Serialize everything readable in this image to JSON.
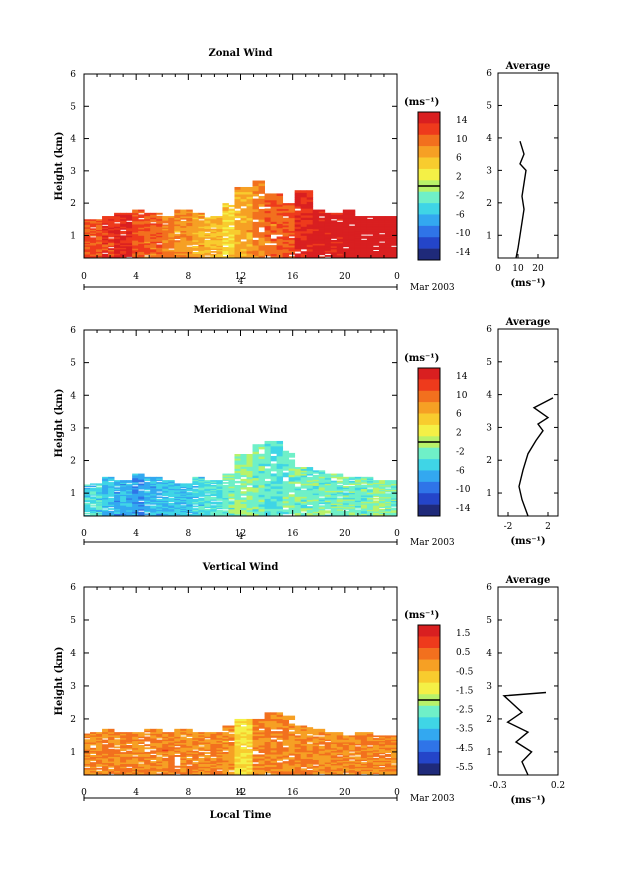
{
  "chart_data": [
    {
      "type": "heatmap",
      "title": "Zonal Wind",
      "ylabel": "Height (km)",
      "xlabel": "",
      "ylim": [
        0.3,
        6
      ],
      "yticks": [
        "1",
        "2",
        "3",
        "4",
        "5",
        "6"
      ],
      "xlim": [
        0,
        24
      ],
      "xticks": [
        "0",
        "4",
        "8",
        "12",
        "16",
        "20",
        "0"
      ],
      "date_label": "4",
      "month_label": "Mar 2003",
      "colorbar": {
        "unit": "(ms⁻¹)",
        "ticks": [
          "14",
          "10",
          "6",
          "2",
          "-2",
          "-6",
          "-10",
          "-14"
        ],
        "range": [
          -14,
          14
        ]
      },
      "average": {
        "title": "Average",
        "xlim": [
          0,
          30
        ],
        "xticks": [
          "0",
          "10",
          "20"
        ],
        "xlabel": "(ms⁻¹)",
        "profile": [
          [
            9,
            0.3
          ],
          [
            10,
            0.6
          ],
          [
            11,
            1.0
          ],
          [
            12,
            1.4
          ],
          [
            13,
            1.8
          ],
          [
            12,
            2.2
          ],
          [
            13,
            2.6
          ],
          [
            14,
            3.0
          ],
          [
            11,
            3.2
          ],
          [
            13,
            3.5
          ],
          [
            11,
            3.9
          ]
        ]
      },
      "field_ceiling": [
        1.5,
        1.6,
        1.7,
        1.8,
        1.7,
        1.6,
        1.8,
        1.7,
        1.6,
        2.0,
        2.5,
        2.7,
        2.3,
        2.0,
        2.4,
        1.8,
        1.7,
        1.8,
        1.6,
        1.6,
        1.6
      ],
      "field_values": [
        10,
        11,
        12,
        10,
        9,
        8,
        7,
        6,
        5,
        4,
        6,
        8,
        9,
        10,
        12,
        13,
        13,
        14,
        14,
        14,
        14
      ]
    },
    {
      "type": "heatmap",
      "title": "Meridional Wind",
      "ylabel": "Height (km)",
      "xlabel": "",
      "ylim": [
        0.3,
        6
      ],
      "yticks": [
        "1",
        "2",
        "3",
        "4",
        "5",
        "6"
      ],
      "xlim": [
        0,
        24
      ],
      "xticks": [
        "0",
        "4",
        "8",
        "12",
        "16",
        "20",
        "0"
      ],
      "date_label": "4",
      "month_label": "Mar 2003",
      "colorbar": {
        "unit": "(ms⁻¹)",
        "ticks": [
          "14",
          "10",
          "6",
          "2",
          "-2",
          "-6",
          "-10",
          "-14"
        ],
        "range": [
          -14,
          14
        ]
      },
      "average": {
        "title": "Average",
        "xlim": [
          -3,
          3
        ],
        "xticks": [
          "-2",
          "2"
        ],
        "xlabel": "(ms⁻¹)",
        "profile": [
          [
            0.0,
            0.3
          ],
          [
            -0.6,
            0.8
          ],
          [
            -0.9,
            1.2
          ],
          [
            -0.5,
            1.7
          ],
          [
            0.0,
            2.2
          ],
          [
            0.8,
            2.6
          ],
          [
            1.5,
            2.9
          ],
          [
            1.0,
            3.1
          ],
          [
            2.0,
            3.3
          ],
          [
            0.6,
            3.6
          ],
          [
            2.5,
            3.9
          ]
        ]
      },
      "field_ceiling": [
        1.3,
        1.5,
        1.4,
        1.6,
        1.5,
        1.4,
        1.3,
        1.5,
        1.4,
        1.6,
        2.2,
        2.5,
        2.6,
        2.3,
        1.8,
        1.7,
        1.6,
        1.5,
        1.5,
        1.4,
        1.4
      ],
      "field_values": [
        -4,
        -5,
        -6,
        -7,
        -6,
        -5,
        -5,
        -4,
        -3,
        -2,
        -1,
        -2,
        -3,
        -2,
        -2,
        -2,
        -2,
        -2,
        -2,
        -1,
        -2
      ]
    },
    {
      "type": "heatmap",
      "title": "Vertical Wind",
      "ylabel": "Height (km)",
      "xlabel": "Local Time",
      "ylim": [
        0.3,
        6
      ],
      "yticks": [
        "1",
        "2",
        "3",
        "4",
        "5",
        "6"
      ],
      "xlim": [
        0,
        24
      ],
      "xticks": [
        "0",
        "4",
        "8",
        "12",
        "16",
        "20",
        "0"
      ],
      "date_label": "4",
      "month_label": "Mar 2003",
      "colorbar": {
        "unit": "(ms⁻¹)",
        "ticks": [
          "1.5",
          "0.5",
          "-0.5",
          "-1.5",
          "-2.5",
          "-3.5",
          "-4.5",
          "-5.5"
        ],
        "range": [
          -6.0,
          2.0
        ]
      },
      "average": {
        "title": "Average",
        "xlim": [
          -0.3,
          0.2
        ],
        "xticks": [
          "-0.3",
          "0.2"
        ],
        "xlabel": "(ms⁻¹)",
        "profile": [
          [
            -0.05,
            0.3
          ],
          [
            -0.1,
            0.7
          ],
          [
            -0.02,
            1.0
          ],
          [
            -0.15,
            1.3
          ],
          [
            -0.05,
            1.6
          ],
          [
            -0.22,
            1.9
          ],
          [
            -0.1,
            2.2
          ],
          [
            -0.25,
            2.7
          ],
          [
            0.1,
            2.8
          ]
        ]
      },
      "field_ceiling": [
        1.6,
        1.7,
        1.6,
        1.6,
        1.7,
        1.6,
        1.7,
        1.6,
        1.6,
        1.8,
        2.0,
        2.0,
        2.2,
        2.1,
        1.8,
        1.7,
        1.6,
        1.5,
        1.6,
        1.5,
        1.5
      ],
      "field_values": [
        0.2,
        0.3,
        0.2,
        0.1,
        0.2,
        0.3,
        0.2,
        0.1,
        0.2,
        0.0,
        -1.0,
        0.1,
        0.2,
        0.1,
        0.2,
        0.2,
        0.2,
        0.1,
        0.2,
        0.2,
        0.2
      ]
    }
  ],
  "colors": [
    "#1f2a7a",
    "#2445c9",
    "#2f74e8",
    "#33a8f0",
    "#3fd5e6",
    "#6ff0c8",
    "#b8f26a",
    "#f4f046",
    "#f8cc2e",
    "#f6a024",
    "#f2701e",
    "#ee3a1c",
    "#d91f20"
  ]
}
